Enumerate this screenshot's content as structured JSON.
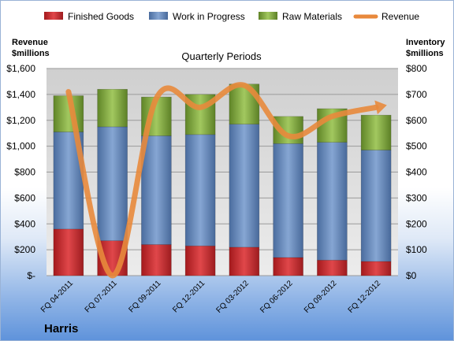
{
  "chart_data": {
    "type": "bar",
    "subtitle": "Quarterly Periods",
    "company": "Harris",
    "left_axis_title": [
      "Revenue",
      "$millions"
    ],
    "right_axis_title": [
      "Inventory",
      "$millions"
    ],
    "categories": [
      "FQ 04-2011",
      "FQ 07-2011",
      "FQ 09-2011",
      "FQ 12-2011",
      "FQ 03-2012",
      "FQ 06-2012",
      "FQ 09-2012",
      "FQ 12-2012"
    ],
    "left_ticks": [
      "$-",
      "$200",
      "$400",
      "$600",
      "$800",
      "$1,000",
      "$1,200",
      "$1,400",
      "$1,600"
    ],
    "right_ticks": [
      "$0",
      "$100",
      "$200",
      "$300",
      "$400",
      "$500",
      "$600",
      "$700",
      "$800"
    ],
    "ylim_revenue": [
      0,
      1600
    ],
    "ylim_inventory": [
      0,
      800
    ],
    "series": [
      {
        "name": "Finished Goods",
        "axis": "inventory",
        "color": "#c0282b",
        "values": [
          180,
          135,
          120,
          115,
          110,
          70,
          60,
          55
        ]
      },
      {
        "name": "Work in Progress",
        "axis": "inventory",
        "color": "#5b80b5",
        "values": [
          375,
          440,
          420,
          430,
          475,
          440,
          455,
          430
        ]
      },
      {
        "name": "Raw Materials",
        "axis": "inventory",
        "color": "#7aa037",
        "values": [
          140,
          145,
          150,
          155,
          155,
          105,
          130,
          135
        ]
      },
      {
        "name": "Revenue",
        "axis": "revenue",
        "type": "line",
        "color": "#e8893c",
        "values": [
          1420,
          0,
          1370,
          1300,
          1470,
          1080,
          1230,
          1300
        ]
      }
    ],
    "grid": true,
    "legend": "top"
  }
}
